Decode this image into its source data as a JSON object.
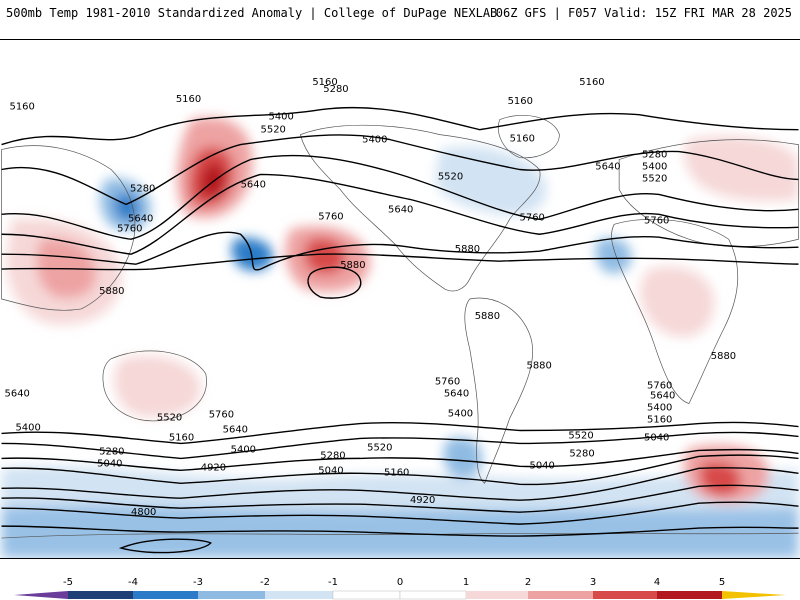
{
  "header": {
    "left_title": "500mb Temp 1981-2010 Standardized Anomaly | College of DuPage NEXLAB",
    "right_title": "06Z GFS | F057 Valid: 15Z FRI MAR 28 2025"
  },
  "map": {
    "contour_labels": [
      "5160",
      "5280",
      "5400",
      "5520",
      "5640",
      "5760",
      "5880",
      "5040",
      "4920",
      "4800"
    ],
    "anomaly_colors": {
      "neg5": "#6a3d9a",
      "neg4": "#1f3f77",
      "neg3": "#2b7bc8",
      "neg2": "#8fbbe3",
      "neg1": "#d2e3f3",
      "zero": "#ffffff",
      "pos1": "#f6d8d8",
      "pos2": "#eea3a3",
      "pos3": "#d84a4a",
      "pos4": "#b3171f",
      "pos5": "#7a0010",
      "pos_extreme": "#f2c200"
    },
    "contour_color": "#000000"
  },
  "colorbar": {
    "ticks": [
      "-5",
      "-4",
      "-3",
      "-2",
      "-1",
      "0",
      "1",
      "2",
      "3",
      "4",
      "5"
    ]
  }
}
